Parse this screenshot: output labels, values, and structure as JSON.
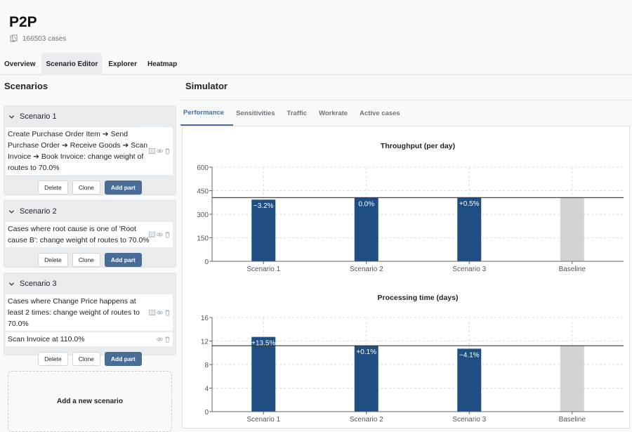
{
  "app": {
    "title": "P2P",
    "cases": "166503 cases"
  },
  "tabs": [
    {
      "label": "Overview",
      "active": false
    },
    {
      "label": "Scenario Editor",
      "active": true
    },
    {
      "label": "Explorer",
      "active": false
    },
    {
      "label": "Heatmap",
      "active": false
    }
  ],
  "scenarios_panel": {
    "title": "Scenarios",
    "add_label": "Add a new scenario",
    "buttons": {
      "delete": "Delete",
      "clone": "Clone",
      "add_part": "Add part"
    },
    "scenarios": [
      {
        "name": "Scenario 1",
        "parts": [
          "Create Purchase Order Item ➔ Send Purchase Order ➔ Receive Goods ➔ Scan Invoice ➔ Book Invoice: change weight of routes to 70.0%"
        ]
      },
      {
        "name": "Scenario 2",
        "parts": [
          "Cases where root cause is one of 'Root cause B': change weight of routes to 70.0%"
        ]
      },
      {
        "name": "Scenario 3",
        "parts": [
          "Cases where Change Price happens at least 2 times: change weight of routes to 70.0%",
          "Scan Invoice at 110.0%"
        ]
      }
    ]
  },
  "simulator": {
    "title": "Simulator",
    "subtabs": [
      {
        "label": "Performance",
        "active": true
      },
      {
        "label": "Sensitivities",
        "active": false
      },
      {
        "label": "Traffic",
        "active": false
      },
      {
        "label": "Workrate",
        "active": false
      },
      {
        "label": "Active cases",
        "active": false
      }
    ]
  },
  "colors": {
    "bar": "#1f4e82",
    "baseline_bar": "#d3d3d3",
    "accent": "#4a6d98"
  },
  "chart_data": [
    {
      "type": "bar",
      "title": "Throughput (per day)",
      "categories": [
        "Scenario 1",
        "Scenario 2",
        "Scenario 3",
        "Baseline"
      ],
      "values": [
        393,
        406,
        408,
        406
      ],
      "labels": [
        "−3.2%",
        "0.0%",
        "+0.5%",
        ""
      ],
      "baseline": 406,
      "yticks": [
        0,
        150,
        300,
        450,
        600
      ],
      "ylim": [
        0,
        600
      ],
      "grid": true
    },
    {
      "type": "bar",
      "title": "Processing time (days)",
      "categories": [
        "Scenario 1",
        "Scenario 2",
        "Scenario 3",
        "Baseline"
      ],
      "values": [
        12.7,
        11.2,
        10.7,
        11.2
      ],
      "labels": [
        "+13.5%",
        "+0.1%",
        "−4.1%",
        ""
      ],
      "baseline": 11.2,
      "yticks": [
        0,
        4,
        8,
        12,
        16
      ],
      "ylim": [
        0,
        16
      ],
      "grid": true
    }
  ]
}
